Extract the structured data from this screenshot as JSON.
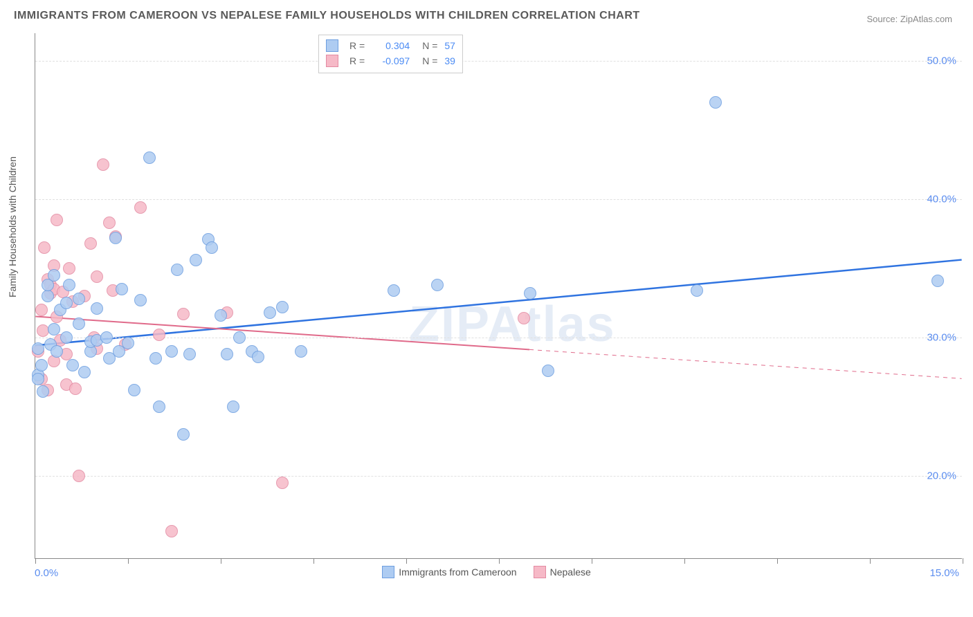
{
  "title": "IMMIGRANTS FROM CAMEROON VS NEPALESE FAMILY HOUSEHOLDS WITH CHILDREN CORRELATION CHART",
  "source": "Source: ZipAtlas.com",
  "watermark": "ZIPAtlas",
  "ylabel": "Family Households with Children",
  "axes": {
    "x_min": 0.0,
    "x_max": 15.0,
    "y_min": 14.0,
    "y_max": 52.0,
    "x_tick_labels": {
      "left": "0.0%",
      "right": "15.0%"
    },
    "x_ticks": [
      0,
      1.5,
      3.0,
      4.5,
      6.0,
      7.5,
      9.0,
      10.5,
      12.0,
      13.5,
      15.0
    ],
    "y_ticks": [
      20.0,
      30.0,
      40.0,
      50.0
    ],
    "y_tick_labels": [
      "20.0%",
      "30.0%",
      "40.0%",
      "50.0%"
    ],
    "grid_color": "#e0e0e0",
    "background_color": "#ffffff",
    "label_fontsize": 14,
    "tick_fontsize": 15,
    "tick_color": "#5b8def"
  },
  "series_a": {
    "name": "Immigrants from Cameroon",
    "marker_fill": "#aeccf2",
    "marker_stroke": "#6d9ee0",
    "line_color": "#2f73e0",
    "line_width": 2.5,
    "marker_diameter": 18,
    "R": "0.304",
    "N": "57",
    "trend": {
      "x1": 0.0,
      "y1": 29.4,
      "x2": 15.0,
      "y2": 35.6
    },
    "points": [
      [
        0.05,
        27.3
      ],
      [
        0.05,
        27.0
      ],
      [
        0.05,
        29.2
      ],
      [
        0.1,
        28.0
      ],
      [
        0.12,
        26.1
      ],
      [
        0.2,
        33.0
      ],
      [
        0.2,
        33.8
      ],
      [
        0.25,
        29.5
      ],
      [
        0.3,
        30.6
      ],
      [
        0.3,
        34.5
      ],
      [
        0.35,
        29.0
      ],
      [
        0.4,
        32.0
      ],
      [
        0.5,
        32.5
      ],
      [
        0.5,
        30.0
      ],
      [
        0.55,
        33.8
      ],
      [
        0.6,
        28.0
      ],
      [
        0.7,
        32.8
      ],
      [
        0.7,
        31.0
      ],
      [
        0.8,
        27.5
      ],
      [
        0.9,
        29.0
      ],
      [
        0.9,
        29.7
      ],
      [
        1.0,
        32.1
      ],
      [
        1.0,
        29.8
      ],
      [
        1.15,
        30.0
      ],
      [
        1.2,
        28.5
      ],
      [
        1.3,
        37.2
      ],
      [
        1.35,
        29.0
      ],
      [
        1.4,
        33.5
      ],
      [
        1.5,
        29.6
      ],
      [
        1.6,
        26.2
      ],
      [
        1.7,
        32.7
      ],
      [
        1.85,
        43.0
      ],
      [
        1.95,
        28.5
      ],
      [
        2.0,
        25.0
      ],
      [
        2.2,
        29.0
      ],
      [
        2.3,
        34.9
      ],
      [
        2.4,
        23.0
      ],
      [
        2.5,
        28.8
      ],
      [
        2.6,
        35.6
      ],
      [
        2.8,
        37.1
      ],
      [
        2.85,
        36.5
      ],
      [
        3.0,
        31.6
      ],
      [
        3.1,
        28.8
      ],
      [
        3.2,
        25.0
      ],
      [
        3.3,
        30.0
      ],
      [
        3.5,
        29.0
      ],
      [
        3.6,
        28.6
      ],
      [
        3.8,
        31.8
      ],
      [
        4.0,
        32.2
      ],
      [
        4.3,
        29.0
      ],
      [
        5.8,
        33.4
      ],
      [
        6.5,
        33.8
      ],
      [
        8.0,
        33.2
      ],
      [
        8.3,
        27.6
      ],
      [
        10.7,
        33.4
      ],
      [
        11.0,
        47.0
      ],
      [
        14.6,
        34.1
      ]
    ]
  },
  "series_b": {
    "name": "Nepalese",
    "marker_fill": "#f6b9c7",
    "marker_stroke": "#e38aa2",
    "line_color": "#e06a8a",
    "line_width": 2,
    "marker_diameter": 18,
    "R": "-0.097",
    "N": "39",
    "trend_solid": {
      "x1": 0.0,
      "y1": 31.5,
      "x2": 8.0,
      "y2": 29.1
    },
    "trend_dashed": {
      "x1": 8.0,
      "y1": 29.1,
      "x2": 15.0,
      "y2": 27.0
    },
    "points": [
      [
        0.05,
        29.0
      ],
      [
        0.1,
        27.0
      ],
      [
        0.1,
        32.0
      ],
      [
        0.12,
        30.5
      ],
      [
        0.15,
        36.5
      ],
      [
        0.2,
        26.2
      ],
      [
        0.2,
        34.2
      ],
      [
        0.25,
        33.8
      ],
      [
        0.25,
        33.2
      ],
      [
        0.3,
        28.3
      ],
      [
        0.3,
        33.5
      ],
      [
        0.3,
        35.2
      ],
      [
        0.35,
        31.5
      ],
      [
        0.35,
        38.5
      ],
      [
        0.4,
        29.8
      ],
      [
        0.45,
        33.3
      ],
      [
        0.5,
        28.8
      ],
      [
        0.5,
        26.6
      ],
      [
        0.55,
        35.0
      ],
      [
        0.6,
        32.6
      ],
      [
        0.65,
        26.3
      ],
      [
        0.7,
        20.0
      ],
      [
        0.8,
        33.0
      ],
      [
        0.9,
        36.8
      ],
      [
        0.95,
        30.0
      ],
      [
        1.0,
        34.4
      ],
      [
        1.0,
        29.2
      ],
      [
        1.1,
        42.5
      ],
      [
        1.2,
        38.3
      ],
      [
        1.25,
        33.4
      ],
      [
        1.3,
        37.3
      ],
      [
        1.45,
        29.5
      ],
      [
        1.7,
        39.4
      ],
      [
        2.0,
        30.2
      ],
      [
        2.2,
        16.0
      ],
      [
        2.4,
        31.7
      ],
      [
        3.1,
        31.8
      ],
      [
        4.0,
        19.5
      ],
      [
        7.9,
        31.4
      ]
    ]
  },
  "legend": {
    "series_a_label": "Immigrants from Cameroon",
    "series_b_label": "Nepalese"
  },
  "stats_box": {
    "r_label": "R =",
    "n_label": "N ="
  }
}
